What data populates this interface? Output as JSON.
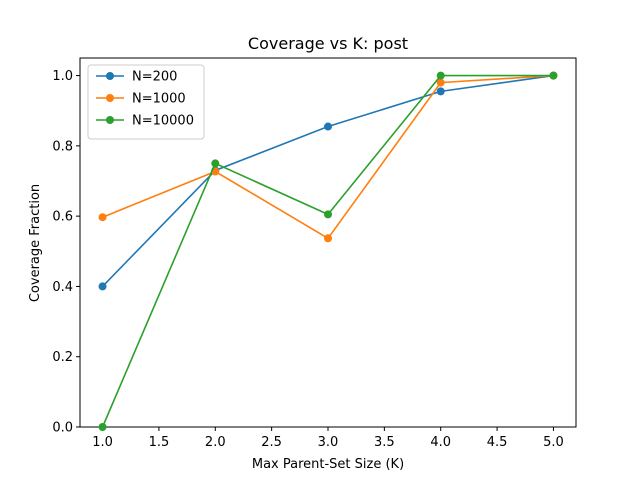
{
  "chart_data": {
    "type": "line",
    "title": "Coverage vs K: post",
    "xlabel": "Max Parent-Set Size (K)",
    "ylabel": "Coverage Fraction",
    "x": [
      1.0,
      2.0,
      3.0,
      4.0,
      5.0
    ],
    "xlim": [
      0.8,
      5.2
    ],
    "ylim": [
      0.0,
      1.05
    ],
    "xticks": [
      1.0,
      1.5,
      2.0,
      2.5,
      3.0,
      3.5,
      4.0,
      4.5,
      5.0
    ],
    "xtick_labels": [
      "1.0",
      "1.5",
      "2.0",
      "2.5",
      "3.0",
      "3.5",
      "4.0",
      "4.5",
      "5.0"
    ],
    "yticks": [
      0.0,
      0.2,
      0.4,
      0.6,
      0.8,
      1.0
    ],
    "ytick_labels": [
      "0.0",
      "0.2",
      "0.4",
      "0.6",
      "0.8",
      "1.0"
    ],
    "grid": false,
    "legend_position": "top-left",
    "series": [
      {
        "name": "N=200",
        "color": "#1f77b4",
        "marker": "circle",
        "values": [
          0.4,
          0.73,
          0.855,
          0.955,
          1.0
        ]
      },
      {
        "name": "N=1000",
        "color": "#ff7f0e",
        "marker": "circle",
        "values": [
          0.597,
          0.727,
          0.537,
          0.98,
          1.0
        ]
      },
      {
        "name": "N=10000",
        "color": "#2ca02c",
        "marker": "circle",
        "values": [
          0.0,
          0.75,
          0.605,
          1.0,
          1.0
        ]
      }
    ]
  }
}
